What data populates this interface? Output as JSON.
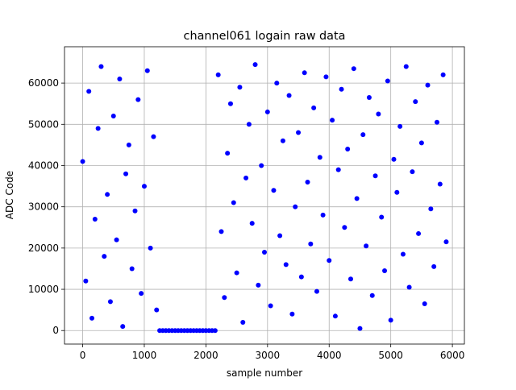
{
  "chart_data": {
    "type": "scatter",
    "title": "channel061 logain raw data",
    "xlabel": "sample number",
    "ylabel": "ADC Code",
    "color": "#0000ff",
    "grid": true,
    "xlim": [
      -295,
      6195
    ],
    "xticks": [
      0,
      1000,
      2000,
      3000,
      4000,
      5000,
      6000
    ],
    "ylim": [
      -3277,
      68812
    ],
    "yticks": [
      0,
      10000,
      20000,
      30000,
      40000,
      50000,
      60000
    ],
    "x": [
      0,
      50,
      100,
      150,
      200,
      250,
      300,
      350,
      400,
      450,
      500,
      550,
      600,
      650,
      700,
      750,
      800,
      850,
      900,
      950,
      1000,
      1050,
      1100,
      1150,
      1200,
      1250,
      1300,
      1350,
      1400,
      1450,
      1500,
      1550,
      1600,
      1650,
      1700,
      1750,
      1800,
      1850,
      1900,
      1950,
      2000,
      2050,
      2100,
      2150,
      2200,
      2250,
      2300,
      2350,
      2400,
      2450,
      2500,
      2550,
      2600,
      2650,
      2700,
      2750,
      2800,
      2850,
      2900,
      2950,
      3000,
      3050,
      3100,
      3150,
      3200,
      3250,
      3300,
      3350,
      3400,
      3450,
      3500,
      3550,
      3600,
      3650,
      3700,
      3750,
      3800,
      3850,
      3900,
      3950,
      4000,
      4050,
      4100,
      4150,
      4200,
      4250,
      4300,
      4350,
      4400,
      4450,
      4500,
      4550,
      4600,
      4650,
      4700,
      4750,
      4800,
      4850,
      4900,
      4950,
      5000,
      5050,
      5100,
      5150,
      5200,
      5250,
      5300,
      5350,
      5400,
      5450,
      5500,
      5550,
      5600,
      5650,
      5700,
      5750,
      5800,
      5850,
      5900
    ],
    "values": [
      41000,
      12000,
      58000,
      3000,
      27000,
      49000,
      64000,
      18000,
      33000,
      7000,
      52000,
      22000,
      61000,
      1000,
      38000,
      45000,
      15000,
      29000,
      56000,
      9000,
      35000,
      63000,
      20000,
      47000,
      5000,
      0,
      0,
      0,
      0,
      0,
      0,
      0,
      0,
      0,
      0,
      0,
      0,
      0,
      0,
      0,
      0,
      0,
      0,
      0,
      62000,
      24000,
      8000,
      43000,
      55000,
      31000,
      14000,
      59000,
      2000,
      37000,
      50000,
      26000,
      64500,
      11000,
      40000,
      19000,
      53000,
      6000,
      34000,
      60000,
      23000,
      46000,
      16000,
      57000,
      4000,
      30000,
      48000,
      13000,
      62500,
      36000,
      21000,
      54000,
      9500,
      42000,
      28000,
      61500,
      17000,
      51000,
      3500,
      39000,
      58500,
      25000,
      44000,
      12500,
      63500,
      32000,
      500,
      47500,
      20500,
      56500,
      8500,
      37500,
      52500,
      27500,
      14500,
      60500,
      2500,
      41500,
      33500,
      49500,
      18500,
      64000,
      10500,
      38500,
      55500,
      23500,
      45500,
      6500,
      59500,
      29500,
      15500,
      50500,
      35500,
      62000,
      21500
    ]
  }
}
